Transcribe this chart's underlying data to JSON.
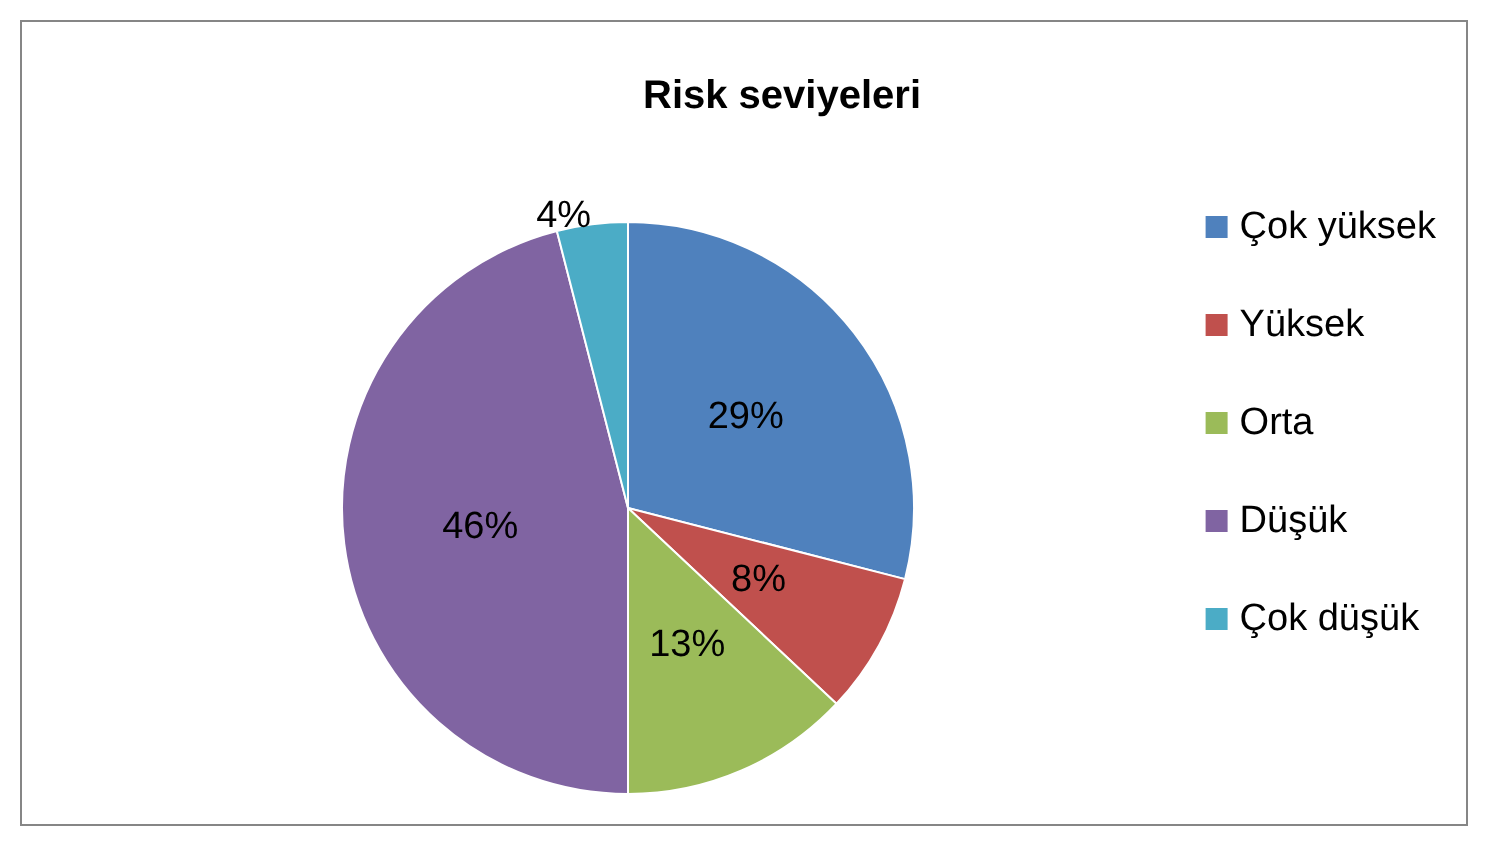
{
  "chart_data": {
    "type": "pie",
    "title": "Risk seviyeleri",
    "categories": [
      "Çok yüksek",
      "Yüksek",
      "Orta",
      "Düşük",
      "Çok düşük"
    ],
    "values": [
      29,
      8,
      13,
      46,
      4
    ],
    "colors": [
      "#4f81bd",
      "#c0504d",
      "#9bbb59",
      "#8064a2",
      "#4bacc6"
    ],
    "value_labels": [
      "29%",
      "8%",
      "13%",
      "46%",
      "4%"
    ],
    "legend": "right"
  }
}
